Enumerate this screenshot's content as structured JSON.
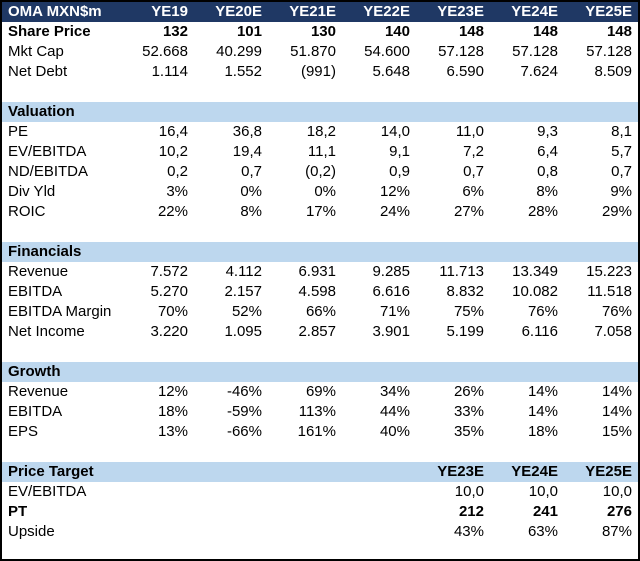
{
  "colors": {
    "header_bg": "#1F3864",
    "header_text": "#FFFFFF",
    "section_bg": "#BDD7EE",
    "border": "#000000"
  },
  "chart_data": {
    "type": "table",
    "title": "OMA MXN$m",
    "columns": [
      "YE19",
      "YE20E",
      "YE21E",
      "YE22E",
      "YE23E",
      "YE24E",
      "YE25E"
    ],
    "rows": [
      {
        "kind": "data",
        "label": "Share Price",
        "bold": true,
        "values": [
          "132",
          "101",
          "130",
          "140",
          "148",
          "148",
          "148"
        ]
      },
      {
        "kind": "data",
        "label": "Mkt Cap",
        "bold": false,
        "values": [
          "52.668",
          "40.299",
          "51.870",
          "54.600",
          "57.128",
          "57.128",
          "57.128"
        ]
      },
      {
        "kind": "data",
        "label": "Net Debt",
        "bold": false,
        "values": [
          "1.114",
          "1.552",
          "(991)",
          "5.648",
          "6.590",
          "7.624",
          "8.509"
        ]
      },
      {
        "kind": "blank"
      },
      {
        "kind": "section",
        "label": "Valuation"
      },
      {
        "kind": "data",
        "label": "PE",
        "bold": false,
        "values": [
          "16,4",
          "36,8",
          "18,2",
          "14,0",
          "11,0",
          "9,3",
          "8,1"
        ]
      },
      {
        "kind": "data",
        "label": "EV/EBITDA",
        "bold": false,
        "values": [
          "10,2",
          "19,4",
          "11,1",
          "9,1",
          "7,2",
          "6,4",
          "5,7"
        ]
      },
      {
        "kind": "data",
        "label": "ND/EBITDA",
        "bold": false,
        "values": [
          "0,2",
          "0,7",
          "(0,2)",
          "0,9",
          "0,7",
          "0,8",
          "0,7"
        ]
      },
      {
        "kind": "data",
        "label": "Div Yld",
        "bold": false,
        "values": [
          "3%",
          "0%",
          "0%",
          "12%",
          "6%",
          "8%",
          "9%"
        ]
      },
      {
        "kind": "data",
        "label": "ROIC",
        "bold": false,
        "values": [
          "22%",
          "8%",
          "17%",
          "24%",
          "27%",
          "28%",
          "29%"
        ]
      },
      {
        "kind": "blank"
      },
      {
        "kind": "section",
        "label": "Financials"
      },
      {
        "kind": "data",
        "label": "Revenue",
        "bold": false,
        "values": [
          "7.572",
          "4.112",
          "6.931",
          "9.285",
          "11.713",
          "13.349",
          "15.223"
        ]
      },
      {
        "kind": "data",
        "label": "EBITDA",
        "bold": false,
        "values": [
          "5.270",
          "2.157",
          "4.598",
          "6.616",
          "8.832",
          "10.082",
          "11.518"
        ]
      },
      {
        "kind": "data",
        "label": "EBITDA Margin",
        "bold": false,
        "values": [
          "70%",
          "52%",
          "66%",
          "71%",
          "75%",
          "76%",
          "76%"
        ]
      },
      {
        "kind": "data",
        "label": "Net Income",
        "bold": false,
        "values": [
          "3.220",
          "1.095",
          "2.857",
          "3.901",
          "5.199",
          "6.116",
          "7.058"
        ]
      },
      {
        "kind": "blank"
      },
      {
        "kind": "section",
        "label": "Growth"
      },
      {
        "kind": "data",
        "label": "Revenue",
        "bold": false,
        "values": [
          "12%",
          "-46%",
          "69%",
          "34%",
          "26%",
          "14%",
          "14%"
        ]
      },
      {
        "kind": "data",
        "label": "EBITDA",
        "bold": false,
        "values": [
          "18%",
          "-59%",
          "113%",
          "44%",
          "33%",
          "14%",
          "14%"
        ]
      },
      {
        "kind": "data",
        "label": "EPS",
        "bold": false,
        "values": [
          "13%",
          "-66%",
          "161%",
          "40%",
          "35%",
          "18%",
          "15%"
        ]
      },
      {
        "kind": "blank"
      },
      {
        "kind": "section",
        "label": "Price Target",
        "values": [
          "",
          "",
          "",
          "",
          "YE23E",
          "YE24E",
          "YE25E"
        ]
      },
      {
        "kind": "data",
        "label": "EV/EBITDA",
        "bold": false,
        "values": [
          "",
          "",
          "",
          "",
          "10,0",
          "10,0",
          "10,0"
        ]
      },
      {
        "kind": "data",
        "label": "PT",
        "bold": true,
        "values": [
          "",
          "",
          "",
          "",
          "212",
          "241",
          "276"
        ]
      },
      {
        "kind": "data",
        "label": "Upside",
        "bold": false,
        "values": [
          "",
          "",
          "",
          "",
          "43%",
          "63%",
          "87%"
        ]
      },
      {
        "kind": "blank"
      }
    ]
  }
}
